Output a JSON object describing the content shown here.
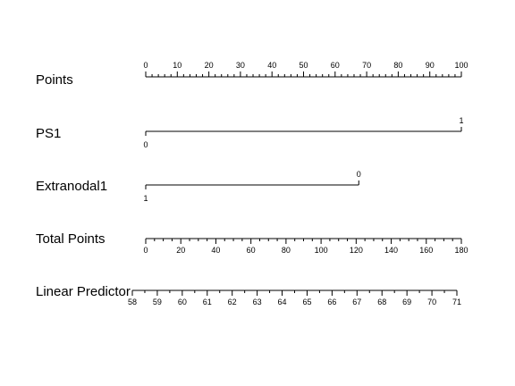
{
  "chart_data": {
    "type": "nomogram",
    "rows": [
      {
        "name": "Points",
        "kind": "scale",
        "min": 0,
        "max": 100,
        "major": [
          0,
          10,
          20,
          30,
          40,
          50,
          60,
          70,
          80,
          90,
          100
        ],
        "minor_step": 2,
        "labels_above": true
      },
      {
        "name": "PS1",
        "kind": "factor",
        "levels": [
          {
            "label": "0",
            "points": 0,
            "position": "below"
          },
          {
            "label": "1",
            "points": 100,
            "position": "above"
          }
        ]
      },
      {
        "name": "Extranodal1",
        "kind": "factor",
        "levels": [
          {
            "label": "1",
            "points": 0,
            "position": "below"
          },
          {
            "label": "0",
            "points": 67.5,
            "position": "above"
          }
        ]
      },
      {
        "name": "Total Points",
        "kind": "scale",
        "min": 0,
        "max": 180,
        "major": [
          0,
          20,
          40,
          60,
          80,
          100,
          120,
          140,
          160,
          180
        ],
        "minor_step": 5,
        "labels_above": false
      },
      {
        "name": "Linear Predictor",
        "kind": "scale",
        "min": 58,
        "max": 71,
        "major": [
          58,
          59,
          60,
          61,
          62,
          63,
          64,
          65,
          66,
          67,
          68,
          69,
          70,
          71
        ],
        "minor_step": 0.5,
        "labels_above": false
      }
    ]
  }
}
